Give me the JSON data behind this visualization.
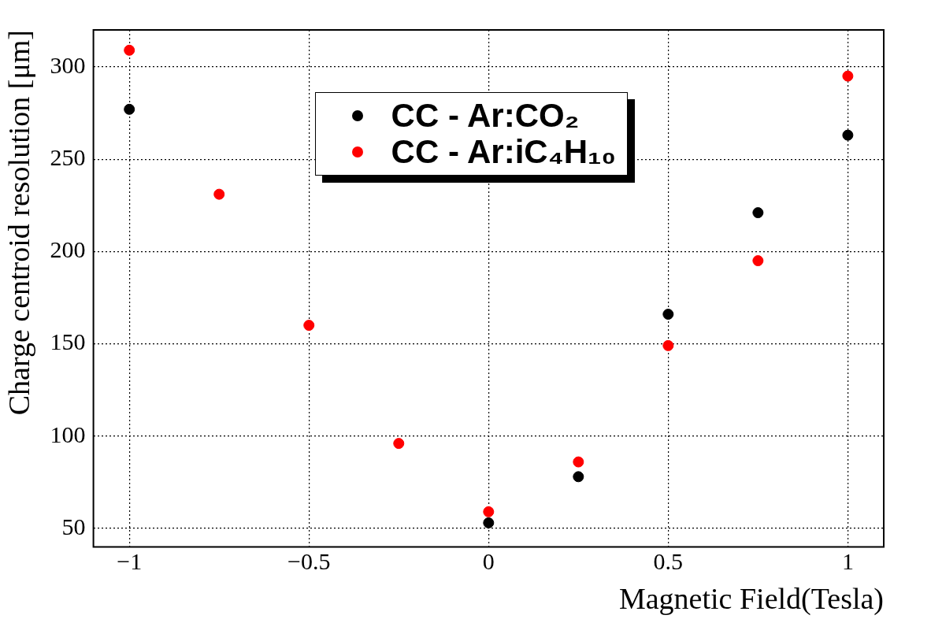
{
  "chart_data": {
    "type": "scatter",
    "xlabel": "Magnetic Field(Tesla)",
    "ylabel": "Charge centroid resolution [μm]",
    "series": [
      {
        "name": "CC - Ar:CO₂",
        "color": "#000000",
        "x": [
          -1,
          0,
          0.25,
          0.5,
          0.75,
          1
        ],
        "values": [
          277,
          53,
          78,
          166,
          221,
          263
        ]
      },
      {
        "name": "CC - Ar:iC₄H₁₀",
        "color": "#ff0000",
        "x": [
          -1,
          -0.75,
          -0.5,
          -0.25,
          0,
          0.25,
          0.5,
          0.75,
          1
        ],
        "values": [
          309,
          231,
          160,
          96,
          59,
          86,
          149,
          195,
          295
        ]
      }
    ],
    "xlim": [
      -1.1,
      1.1
    ],
    "xticks": [
      {
        "value": -1,
        "label": "−1"
      },
      {
        "value": -0.5,
        "label": "−0.5"
      },
      0,
      0.5,
      1
    ],
    "ylim": [
      40,
      320
    ],
    "yticks": [
      50,
      100,
      150,
      200,
      250,
      300
    ],
    "grid": true,
    "legend": "top",
    "marker": "circle"
  }
}
